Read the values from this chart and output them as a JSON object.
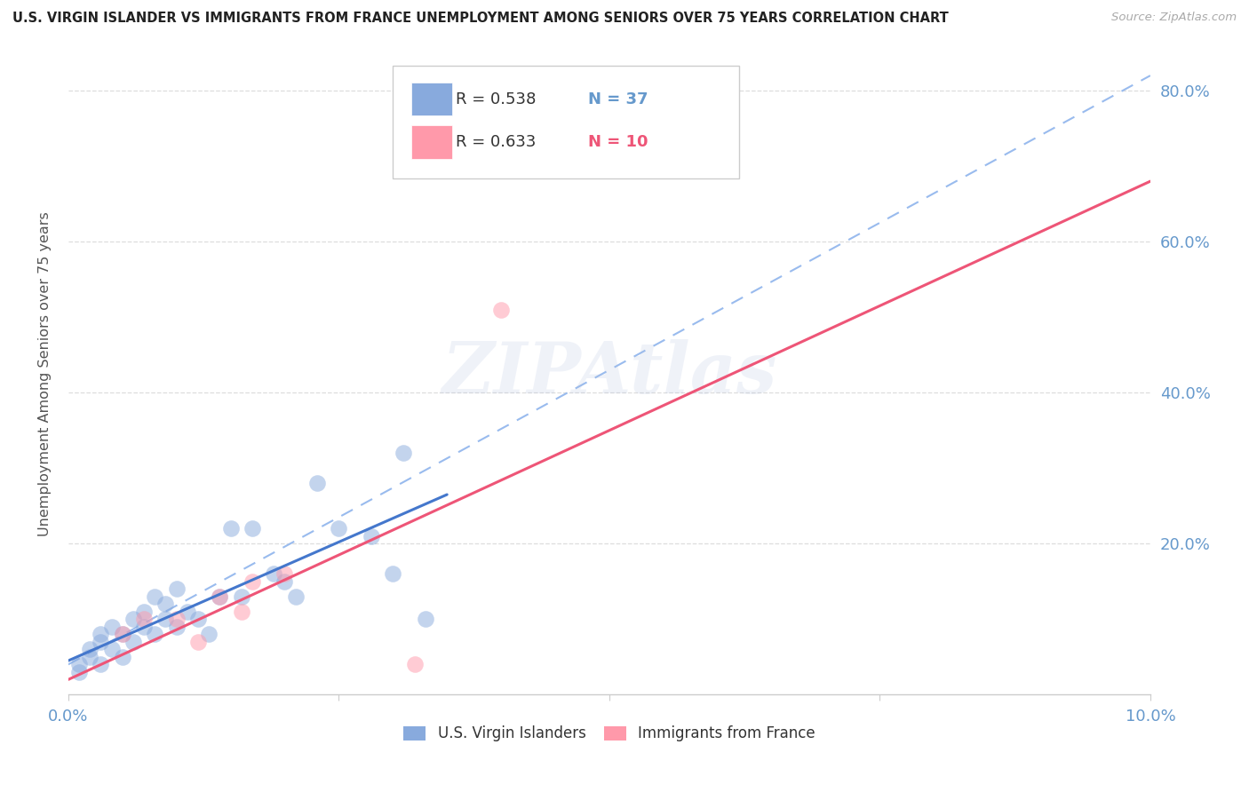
{
  "title": "U.S. VIRGIN ISLANDER VS IMMIGRANTS FROM FRANCE UNEMPLOYMENT AMONG SENIORS OVER 75 YEARS CORRELATION CHART",
  "source": "Source: ZipAtlas.com",
  "ylabel": "Unemployment Among Seniors over 75 years",
  "legend_blue_r": "R = 0.538",
  "legend_blue_n": "N = 37",
  "legend_pink_r": "R = 0.633",
  "legend_pink_n": "N = 10",
  "legend_blue_label": "U.S. Virgin Islanders",
  "legend_pink_label": "Immigrants from France",
  "watermark": "ZIPAtlas",
  "xlim": [
    0.0,
    0.1
  ],
  "ylim": [
    0.0,
    0.85
  ],
  "yticks": [
    0.0,
    0.2,
    0.4,
    0.6,
    0.8
  ],
  "ytick_labels": [
    "",
    "20.0%",
    "40.0%",
    "60.0%",
    "80.0%"
  ],
  "xticks": [
    0.0,
    0.025,
    0.05,
    0.075,
    0.1
  ],
  "xtick_labels": [
    "0.0%",
    "",
    "",
    "",
    "10.0%"
  ],
  "blue_scatter_x": [
    0.001,
    0.001,
    0.002,
    0.002,
    0.003,
    0.003,
    0.003,
    0.004,
    0.004,
    0.005,
    0.005,
    0.006,
    0.006,
    0.007,
    0.007,
    0.008,
    0.008,
    0.009,
    0.009,
    0.01,
    0.01,
    0.011,
    0.012,
    0.013,
    0.014,
    0.015,
    0.016,
    0.017,
    0.019,
    0.02,
    0.021,
    0.023,
    0.025,
    0.028,
    0.03,
    0.031,
    0.033
  ],
  "blue_scatter_y": [
    0.03,
    0.04,
    0.05,
    0.06,
    0.04,
    0.07,
    0.08,
    0.06,
    0.09,
    0.05,
    0.08,
    0.07,
    0.1,
    0.09,
    0.11,
    0.08,
    0.13,
    0.1,
    0.12,
    0.09,
    0.14,
    0.11,
    0.1,
    0.08,
    0.13,
    0.22,
    0.13,
    0.22,
    0.16,
    0.15,
    0.13,
    0.28,
    0.22,
    0.21,
    0.16,
    0.32,
    0.1
  ],
  "pink_scatter_x": [
    0.005,
    0.007,
    0.01,
    0.012,
    0.014,
    0.016,
    0.017,
    0.02,
    0.04,
    0.032
  ],
  "pink_scatter_y": [
    0.08,
    0.1,
    0.1,
    0.07,
    0.13,
    0.11,
    0.15,
    0.16,
    0.51,
    0.04
  ],
  "blue_line_x": [
    0.0,
    0.035
  ],
  "blue_line_y": [
    0.045,
    0.265
  ],
  "pink_line_x": [
    0.0,
    0.1
  ],
  "pink_line_y": [
    0.02,
    0.68
  ],
  "dashed_line_x": [
    0.0,
    0.1
  ],
  "dashed_line_y": [
    0.04,
    0.82
  ],
  "title_color": "#222222",
  "source_color": "#aaaaaa",
  "blue_color": "#88aadd",
  "blue_scatter_color": "#88aadd",
  "pink_color": "#ff99aa",
  "pink_scatter_color": "#ff99aa",
  "blue_line_color": "#4477cc",
  "pink_line_color": "#ee5577",
  "dashed_line_color": "#99bbee",
  "axis_color": "#6699cc",
  "grid_color": "#dddddd"
}
